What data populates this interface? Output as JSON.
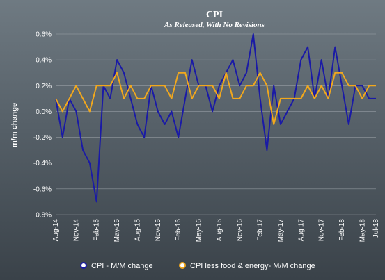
{
  "chart_data": {
    "type": "line",
    "title": "CPI",
    "subtitle": "As Released, With No Revisions",
    "ylabel": "m/m change",
    "xlabel": "",
    "ylim": [
      -0.8,
      0.6
    ],
    "yticks": [
      "0.6%",
      "0.4%",
      "0.2%",
      "0.0%",
      "-0.2%",
      "-0.4%",
      "-0.6%",
      "-0.8%"
    ],
    "ytick_values": [
      0.6,
      0.4,
      0.2,
      0.0,
      -0.2,
      -0.4,
      -0.6,
      -0.8
    ],
    "xtick_labels": [
      "Aug-14",
      "Nov-14",
      "Feb-15",
      "May-15",
      "Aug-15",
      "Nov-15",
      "Feb-16",
      "May-16",
      "Aug-16",
      "Nov-16",
      "Feb-17",
      "May-17",
      "Aug-17",
      "Nov-17",
      "Feb-18",
      "May-18",
      "Jul-18"
    ],
    "xtick_index": [
      0,
      3,
      6,
      9,
      12,
      15,
      18,
      21,
      24,
      27,
      30,
      33,
      36,
      39,
      42,
      45,
      47
    ],
    "x": [
      "Aug-14",
      "Sep-14",
      "Oct-14",
      "Nov-14",
      "Dec-14",
      "Jan-15",
      "Feb-15",
      "Mar-15",
      "Apr-15",
      "May-15",
      "Jun-15",
      "Jul-15",
      "Aug-15",
      "Sep-15",
      "Oct-15",
      "Nov-15",
      "Dec-15",
      "Jan-16",
      "Feb-16",
      "Mar-16",
      "Apr-16",
      "May-16",
      "Jun-16",
      "Jul-16",
      "Aug-16",
      "Sep-16",
      "Oct-16",
      "Nov-16",
      "Dec-16",
      "Jan-17",
      "Feb-17",
      "Mar-17",
      "Apr-17",
      "May-17",
      "Jun-17",
      "Jul-17",
      "Aug-17",
      "Sep-17",
      "Oct-17",
      "Nov-17",
      "Dec-17",
      "Jan-18",
      "Feb-18",
      "Mar-18",
      "Apr-18",
      "May-18",
      "Jun-18",
      "Jul-18"
    ],
    "series": [
      {
        "name": "CPI - M/M change",
        "color": "#1a1aa6",
        "values": [
          0.1,
          -0.2,
          0.1,
          0.0,
          -0.3,
          -0.4,
          -0.7,
          0.2,
          0.1,
          0.4,
          0.3,
          0.1,
          -0.1,
          -0.2,
          0.2,
          0.0,
          -0.1,
          0.0,
          -0.2,
          0.1,
          0.4,
          0.2,
          0.2,
          0.0,
          0.2,
          0.3,
          0.4,
          0.2,
          0.3,
          0.6,
          0.1,
          -0.3,
          0.2,
          -0.1,
          0.0,
          0.1,
          0.4,
          0.5,
          0.1,
          0.4,
          0.1,
          0.5,
          0.2,
          -0.1,
          0.2,
          0.2,
          0.1,
          0.1
        ]
      },
      {
        "name": "CPI less food & energy- M/M change",
        "color": "#f2a81d",
        "values": [
          0.1,
          0.0,
          0.1,
          0.2,
          0.1,
          0.0,
          0.2,
          0.2,
          0.2,
          0.3,
          0.1,
          0.2,
          0.1,
          0.1,
          0.2,
          0.2,
          0.2,
          0.1,
          0.3,
          0.3,
          0.1,
          0.2,
          0.2,
          0.2,
          0.1,
          0.3,
          0.1,
          0.1,
          0.2,
          0.2,
          0.3,
          0.2,
          -0.1,
          0.1,
          0.1,
          0.1,
          0.1,
          0.2,
          0.1,
          0.2,
          0.1,
          0.3,
          0.3,
          0.2,
          0.2,
          0.1,
          0.2,
          0.2
        ]
      }
    ],
    "legend_position": "bottom",
    "grid": true
  }
}
